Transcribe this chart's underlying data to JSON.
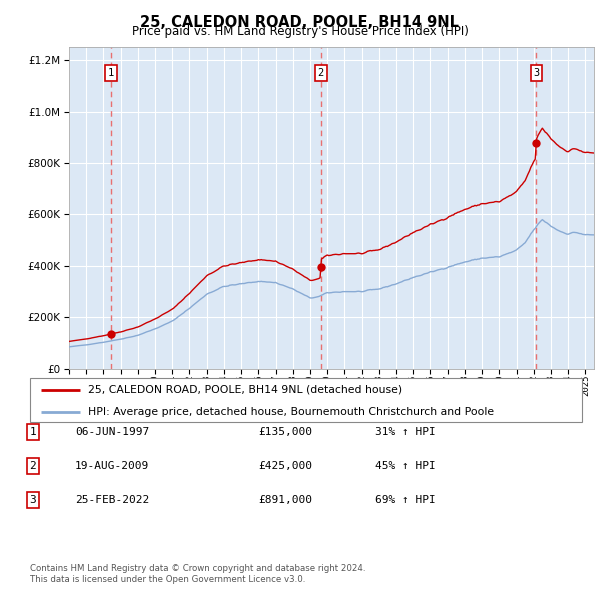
{
  "title": "25, CALEDON ROAD, POOLE, BH14 9NL",
  "subtitle": "Price paid vs. HM Land Registry's House Price Index (HPI)",
  "legend_line1": "25, CALEDON ROAD, POOLE, BH14 9NL (detached house)",
  "legend_line2": "HPI: Average price, detached house, Bournemouth Christchurch and Poole",
  "footer1": "Contains HM Land Registry data © Crown copyright and database right 2024.",
  "footer2": "This data is licensed under the Open Government Licence v3.0.",
  "transactions": [
    {
      "num": "1",
      "date": "06-JUN-1997",
      "price": "£135,000",
      "hpi_pct": "31% ↑ HPI",
      "x_year": 1997.44
    },
    {
      "num": "2",
      "date": "19-AUG-2009",
      "price": "£425,000",
      "hpi_pct": "45% ↑ HPI",
      "x_year": 2009.63
    },
    {
      "num": "3",
      "date": "25-FEB-2022",
      "price": "£891,000",
      "hpi_pct": "69% ↑ HPI",
      "x_year": 2022.15
    }
  ],
  "sale_prices": [
    135000,
    425000,
    891000
  ],
  "sale_years": [
    1997.44,
    2009.63,
    2022.15
  ],
  "price_color": "#cc0000",
  "hpi_color": "#88aad4",
  "dashed_line_color": "#e87070",
  "marker_color": "#cc0000",
  "plot_bg": "#dce8f5",
  "grid_color": "#ffffff",
  "box_color": "#cc0000",
  "ylim": [
    0,
    1250000
  ],
  "yticks": [
    0,
    200000,
    400000,
    600000,
    800000,
    1000000,
    1200000
  ],
  "xlim_start": 1995.0,
  "xlim_end": 2025.5
}
